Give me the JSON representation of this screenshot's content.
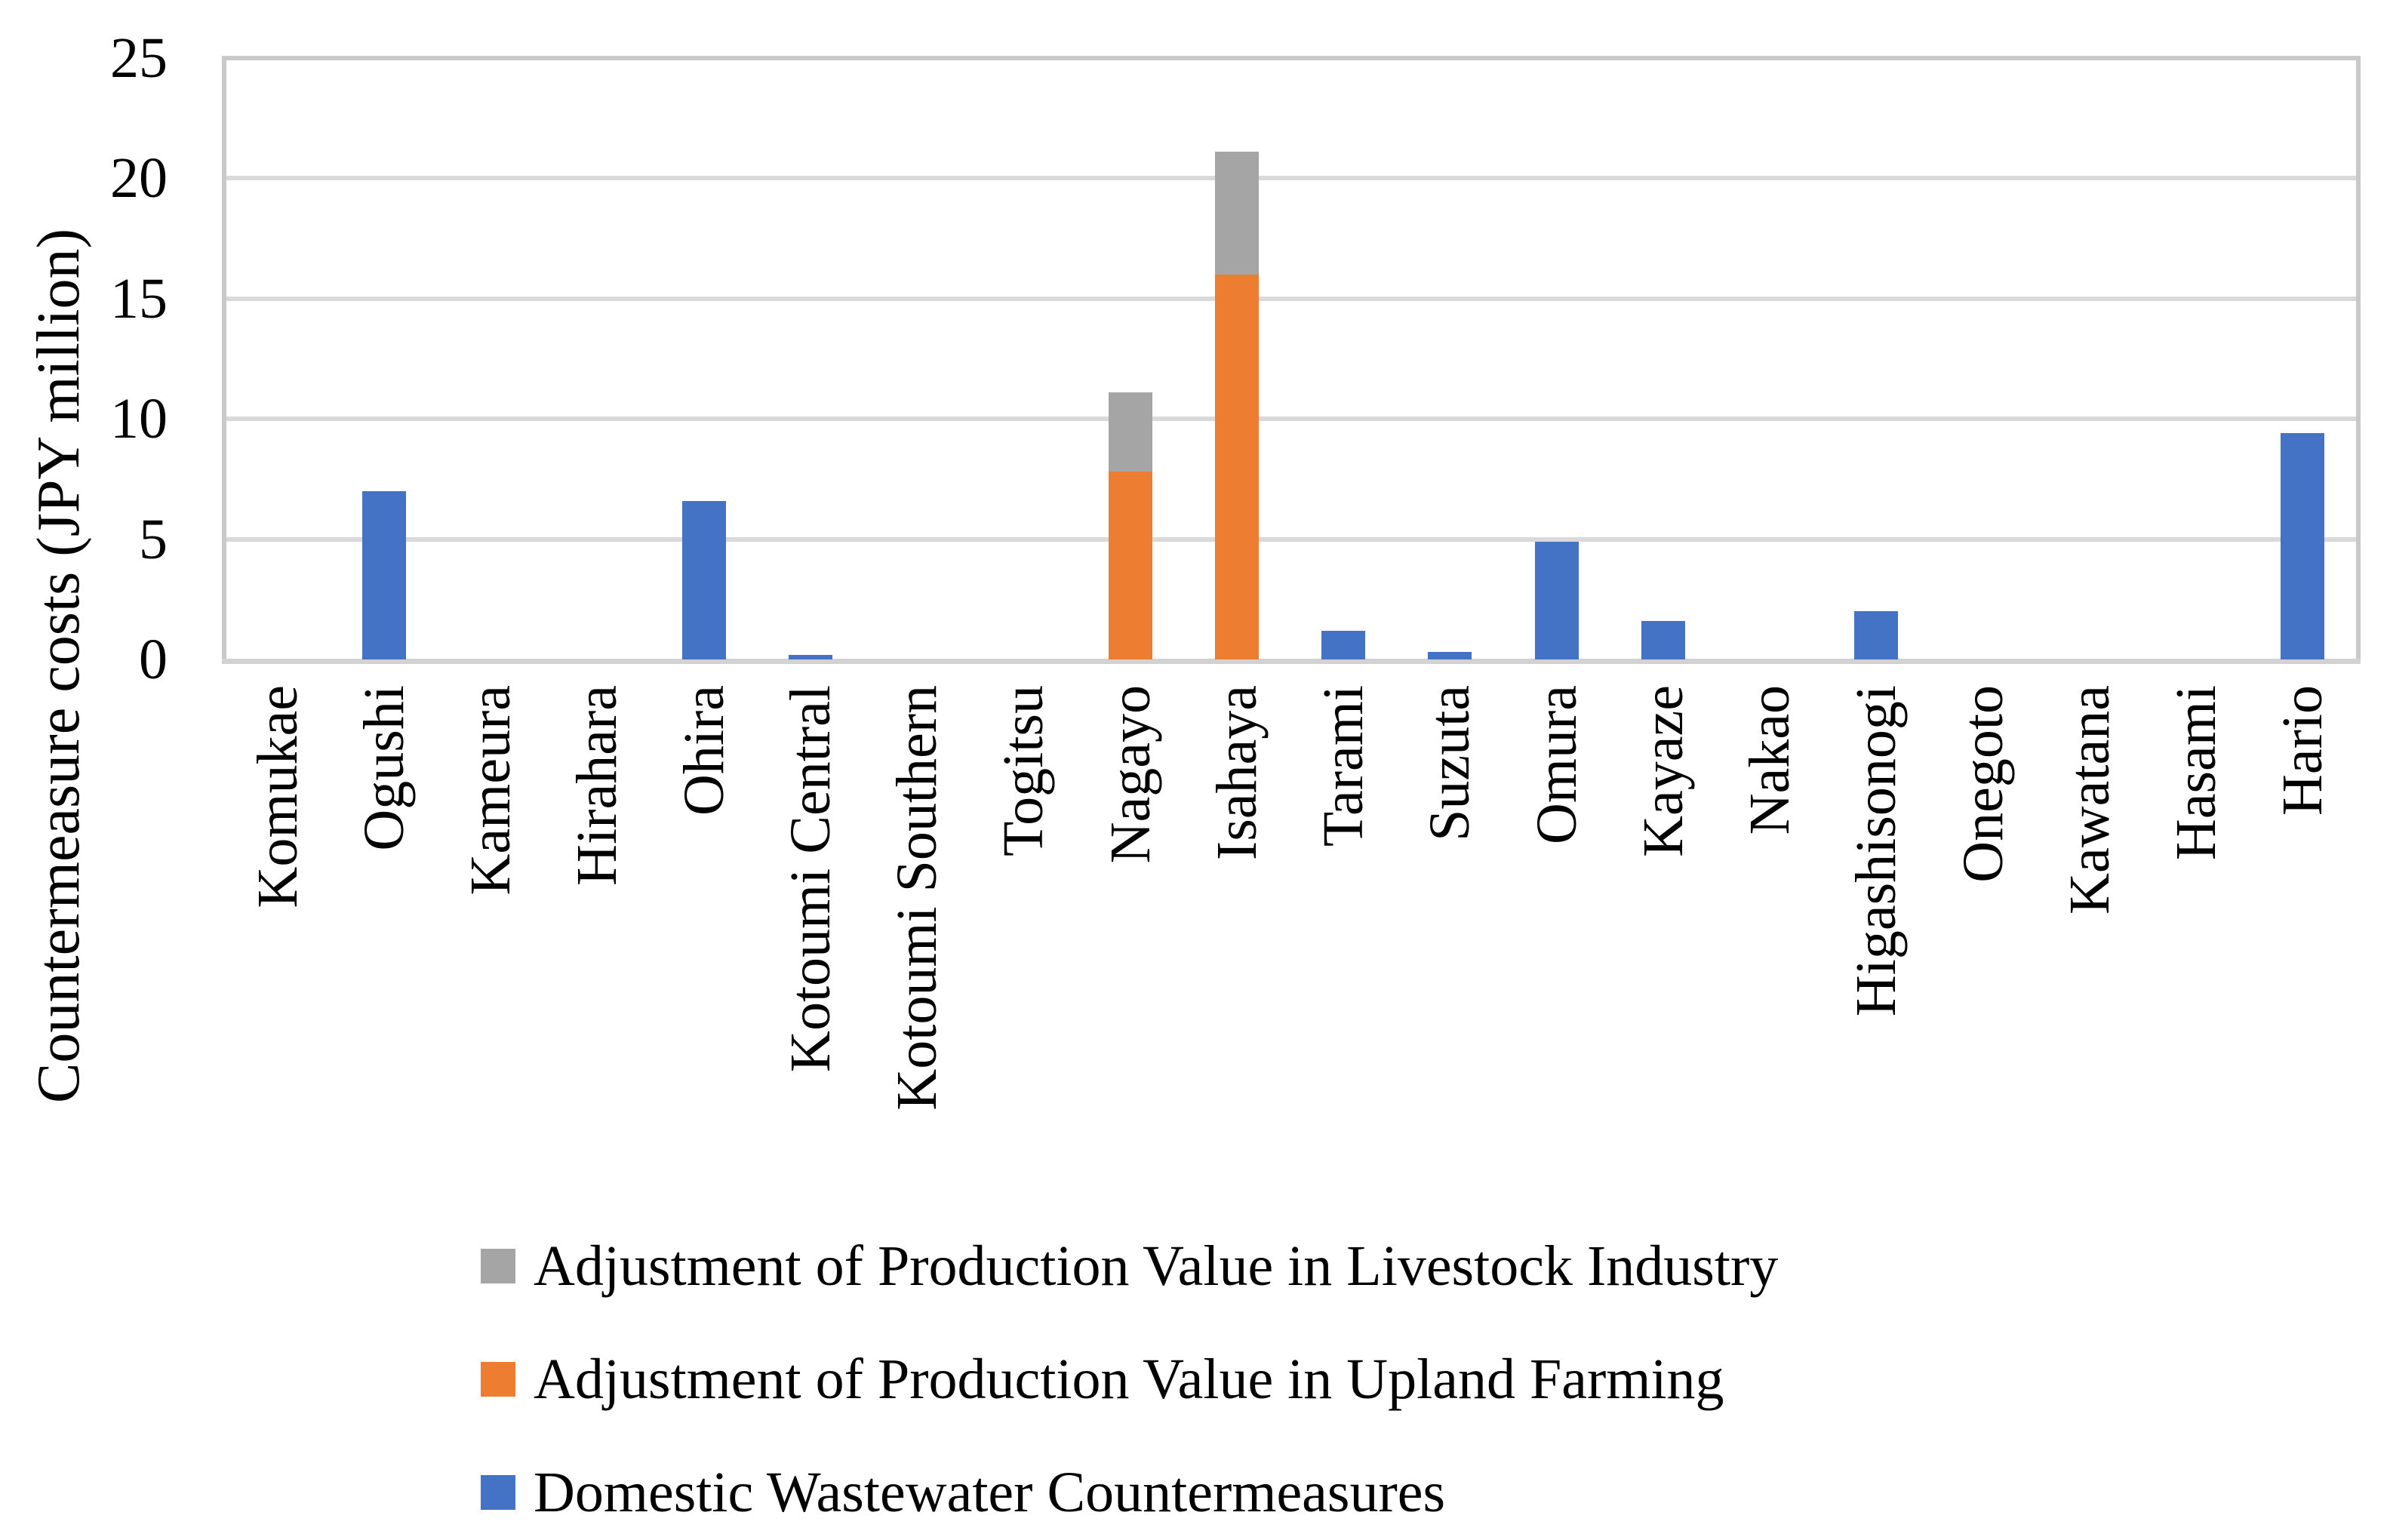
{
  "chart_data": {
    "type": "bar",
    "stacked": true,
    "title": "",
    "xlabel": "",
    "ylabel": "Countermeasure costs (JPY million)",
    "ylim": [
      0,
      25
    ],
    "yticks": [
      0,
      5,
      10,
      15,
      20,
      25
    ],
    "grid": "horizontal",
    "legend_position": "bottom-left",
    "categories": [
      "Komukae",
      "Ogushi",
      "Kameura",
      "Hirahara",
      "Ohira",
      "Kotoumi Central",
      "Kotoumi Southern",
      "Togitsu",
      "Nagayo",
      "Isahaya",
      "Tarami",
      "Suzuta",
      "Omura",
      "Kayaze",
      "Nakao",
      "Higashisonogi",
      "Onegoto",
      "Kawatana",
      "Hasami",
      "Hario"
    ],
    "series": [
      {
        "name": "Domestic Wastewater Countermeasures",
        "color": "#4472C4",
        "values": [
          0,
          7,
          0,
          0,
          6.6,
          0.2,
          0,
          0,
          0,
          0,
          1.2,
          0.3,
          4.9,
          1.6,
          0,
          2,
          0,
          0,
          0,
          9.4
        ]
      },
      {
        "name": "Adjustment of Production Value in Upland Farming",
        "color": "#ED7D31",
        "values": [
          0,
          0,
          0,
          0,
          0,
          0,
          0,
          0,
          7.8,
          16,
          0,
          0,
          0,
          0,
          0,
          0,
          0,
          0,
          0,
          0
        ]
      },
      {
        "name": "Adjustment of Production Value in Livestock Industry",
        "color": "#A5A5A5",
        "values": [
          0,
          0,
          0,
          0,
          0,
          0,
          0,
          0,
          3.3,
          5.1,
          0,
          0,
          0,
          0,
          0,
          0,
          0,
          0,
          0,
          0
        ]
      }
    ],
    "legend_order": [
      "Adjustment of Production Value in Livestock Industry",
      "Adjustment of Production Value in Upland Farming",
      "Domestic Wastewater Countermeasures"
    ],
    "colors": {
      "gridline": "#D9D9D9",
      "plot_border": "#C9C9C9",
      "axis_line": "#D2D2D2",
      "text": "#000000",
      "background": "#FFFFFF"
    }
  }
}
